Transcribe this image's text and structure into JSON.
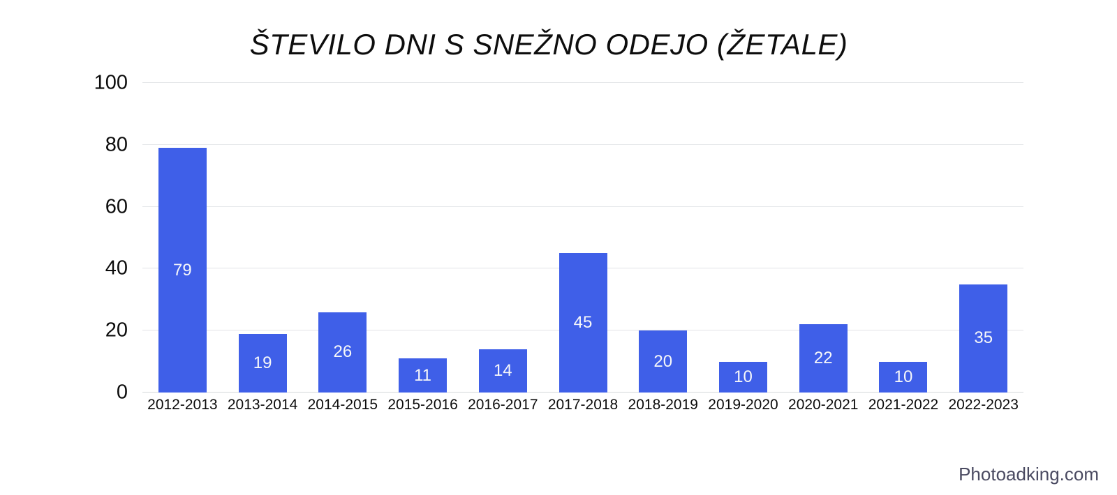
{
  "page": {
    "watermark": "Photoadking.com"
  },
  "colors": {
    "bar": "#3f5fe8",
    "gridline": "#e1e3e6",
    "value_label": "#f6f7f9",
    "watermark": "#4a4a61",
    "background": "#ffffff",
    "text": "#0c0c0c"
  },
  "chart_data": {
    "type": "bar",
    "title": "ŠTEVILO DNI S SNEŽNO ODEJO (ŽETALE)",
    "categories": [
      "2012-2013",
      "2013-2014",
      "2014-2015",
      "2015-2016",
      "2016-2017",
      "2017-2018",
      "2018-2019",
      "2019-2020",
      "2020-2021",
      "2021-2022",
      "2022-2023"
    ],
    "values": [
      79,
      19,
      26,
      11,
      14,
      45,
      20,
      10,
      22,
      10,
      35
    ],
    "xlabel": "",
    "ylabel": "",
    "ylim": [
      0,
      100
    ],
    "yticks": [
      0,
      20,
      40,
      60,
      80,
      100
    ],
    "grid": true,
    "legend": "none",
    "bar_color": "#3f5fe8",
    "value_label_position": "inside-center"
  }
}
